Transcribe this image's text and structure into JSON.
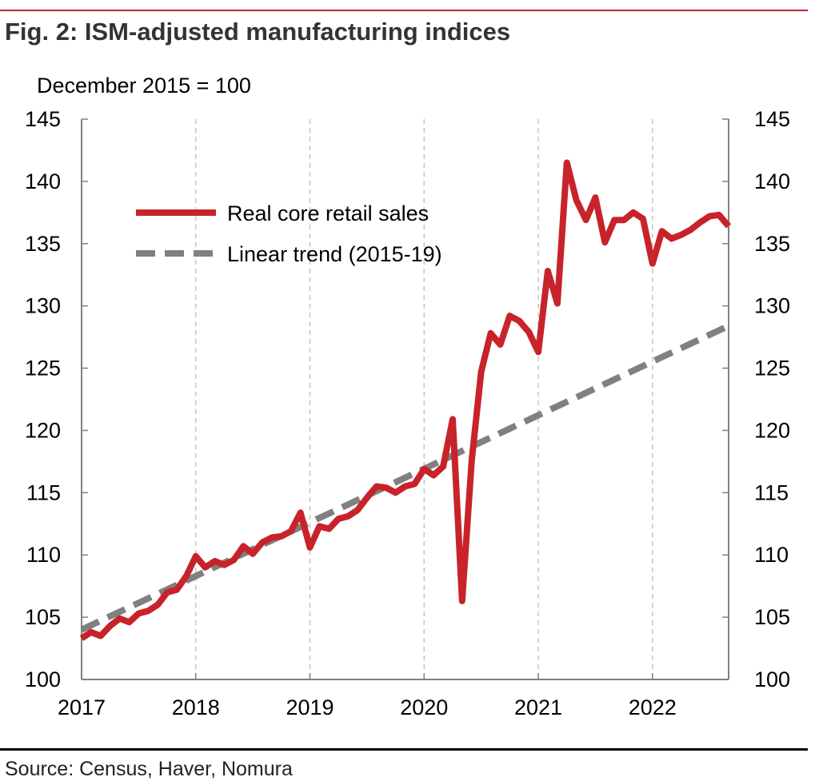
{
  "figure": {
    "title": "Fig. 2: ISM-adjusted manufacturing indices",
    "unit_note": "December 2015 = 100",
    "source": "Source: Census, Haver, Nomura",
    "accent_color": "#c0242c",
    "text_color": "#333333"
  },
  "chart_data": {
    "type": "line",
    "title": "Fig. 2: ISM-adjusted manufacturing indices",
    "subtitle": "December 2015 = 100",
    "xlabel": "",
    "ylabel": "",
    "x_tick_labels": [
      "2017",
      "2018",
      "2019",
      "2020",
      "2021",
      "2022"
    ],
    "x_ticks": [
      2017,
      2018,
      2019,
      2020,
      2021,
      2022
    ],
    "xlim": [
      2017.0,
      2022.667
    ],
    "y_ticks": [
      100,
      105,
      110,
      115,
      120,
      125,
      130,
      135,
      140,
      145
    ],
    "ylim": [
      100,
      145
    ],
    "y_axis_both_sides": true,
    "grid": "vertical dashed",
    "legend_position": "top-left",
    "series": [
      {
        "name": "Real core retail sales",
        "color": "#c8232a",
        "style": "solid",
        "x": [
          2017.0,
          2017.083,
          2017.167,
          2017.25,
          2017.333,
          2017.417,
          2017.5,
          2017.583,
          2017.667,
          2017.75,
          2017.833,
          2017.917,
          2018.0,
          2018.083,
          2018.167,
          2018.25,
          2018.333,
          2018.417,
          2018.5,
          2018.583,
          2018.667,
          2018.75,
          2018.833,
          2018.917,
          2019.0,
          2019.083,
          2019.167,
          2019.25,
          2019.333,
          2019.417,
          2019.5,
          2019.583,
          2019.667,
          2019.75,
          2019.833,
          2019.917,
          2020.0,
          2020.083,
          2020.167,
          2020.25,
          2020.333,
          2020.417,
          2020.5,
          2020.583,
          2020.667,
          2020.75,
          2020.833,
          2020.917,
          2021.0,
          2021.083,
          2021.167,
          2021.25,
          2021.333,
          2021.417,
          2021.5,
          2021.583,
          2021.667,
          2021.75,
          2021.833,
          2021.917,
          2022.0,
          2022.083,
          2022.167,
          2022.25,
          2022.333,
          2022.417,
          2022.5,
          2022.583,
          2022.667
        ],
        "values": [
          103.3,
          103.8,
          103.5,
          104.3,
          104.9,
          104.6,
          105.3,
          105.5,
          106.0,
          107.0,
          107.2,
          108.3,
          109.9,
          109.0,
          109.5,
          109.2,
          109.6,
          110.7,
          110.1,
          111.0,
          111.4,
          111.5,
          111.9,
          113.4,
          110.6,
          112.3,
          112.1,
          112.9,
          113.1,
          113.6,
          114.6,
          115.5,
          115.4,
          115.0,
          115.5,
          115.7,
          116.9,
          116.4,
          117.1,
          120.9,
          106.3,
          117.6,
          124.7,
          127.8,
          126.9,
          129.2,
          128.8,
          127.9,
          126.3,
          132.8,
          130.2,
          141.5,
          138.5,
          136.9,
          138.7,
          135.1,
          136.9,
          136.9,
          137.5,
          137.0,
          133.4,
          136.0,
          135.4,
          135.7,
          136.1,
          136.7,
          137.2,
          137.3,
          136.4
        ]
      },
      {
        "name": "Linear trend (2015-19)",
        "color": "#808080",
        "style": "dashed",
        "x": [
          2017.0,
          2022.667
        ],
        "values": [
          104.0,
          128.4
        ]
      }
    ]
  }
}
